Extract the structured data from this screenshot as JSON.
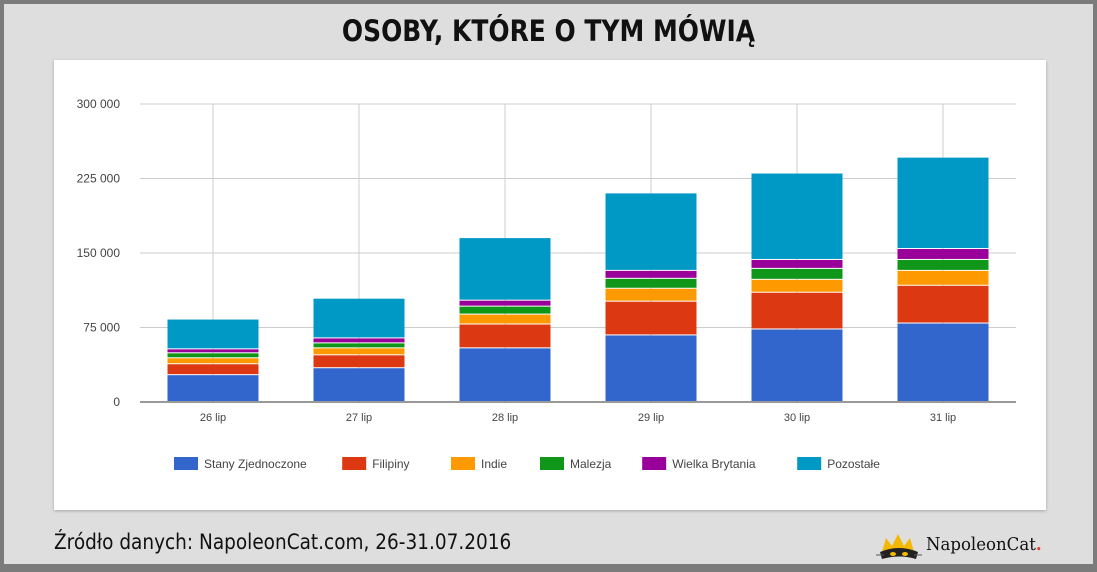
{
  "chart_data": {
    "type": "bar",
    "stacked": true,
    "title": "OSOBY, KTÓRE O TYM MÓWIĄ",
    "categories": [
      "26 lip",
      "27 lip",
      "28 lip",
      "29 lip",
      "30 lip",
      "31 lip"
    ],
    "ylim": [
      0,
      300000
    ],
    "yticks": [
      0,
      75000,
      150000,
      225000,
      300000
    ],
    "ytick_labels": [
      "0",
      "75 000",
      "150 000",
      "225 000",
      "300 000"
    ],
    "grid": true,
    "legend_position": "bottom",
    "series": [
      {
        "name": "Stany Zjednoczone",
        "color": "#3366cc",
        "values": [
          27000,
          34000,
          54000,
          67000,
          73000,
          79000
        ]
      },
      {
        "name": "Filipiny",
        "color": "#dc3912",
        "values": [
          11000,
          13000,
          24000,
          34000,
          37000,
          38000
        ]
      },
      {
        "name": "Indie",
        "color": "#ff9900",
        "values": [
          6000,
          7000,
          10000,
          13000,
          13000,
          15000
        ]
      },
      {
        "name": "Malezja",
        "color": "#109618",
        "values": [
          5000,
          5000,
          8000,
          10000,
          11000,
          11000
        ]
      },
      {
        "name": "Wielka Brytania",
        "color": "#990099",
        "values": [
          4000,
          5000,
          6000,
          8000,
          9000,
          11000
        ]
      },
      {
        "name": "Pozostałe",
        "color": "#0099c6",
        "values": [
          30000,
          40000,
          63000,
          78000,
          87000,
          92000
        ]
      }
    ]
  },
  "footer": {
    "source": "Źródło danych: NapoleonCat.com, 26-31.07.2016",
    "logo_text": "NapoleonCat",
    "logo_dot": "."
  }
}
